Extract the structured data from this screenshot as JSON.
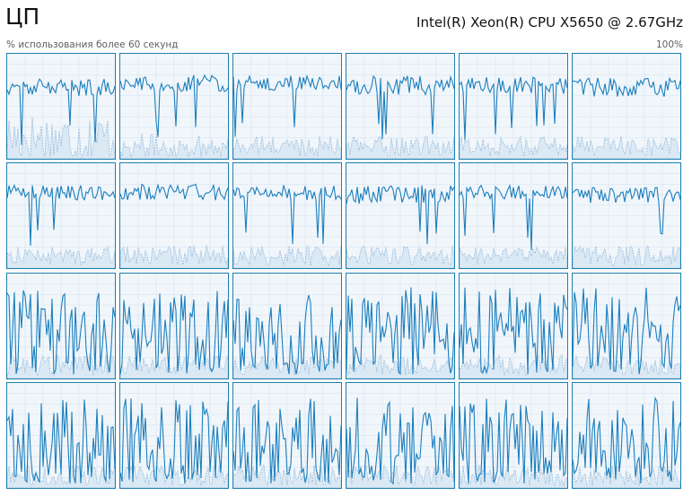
{
  "header": {
    "title": "ЦП",
    "cpu_name": "Intel(R) Xeon(R) CPU X5650 @ 2.67GHz",
    "subtitle": "% использования более 60 секунд",
    "max_percent": "100%"
  },
  "colors": {
    "border": "#1b7fb0",
    "line": "#1c7fbd",
    "fill": "#dbe9f5",
    "background": "#f1f6fb",
    "grid": "#d7e4f0"
  },
  "graphs": {
    "count": 24,
    "rows": 4,
    "columns": 6,
    "levels": [
      [
        0.68,
        0.08,
        0.2,
        0.5
      ],
      [
        0.72,
        0.08,
        0.12,
        0.25
      ],
      [
        0.72,
        0.07,
        0.12,
        0.2
      ],
      [
        0.7,
        0.09,
        0.12,
        0.2
      ],
      [
        0.7,
        0.08,
        0.12,
        0.2
      ],
      [
        0.68,
        0.09,
        0.12,
        0.2
      ],
      [
        0.72,
        0.07,
        0.12,
        0.18
      ],
      [
        0.72,
        0.08,
        0.12,
        0.2
      ],
      [
        0.72,
        0.07,
        0.12,
        0.2
      ],
      [
        0.7,
        0.09,
        0.12,
        0.18
      ],
      [
        0.72,
        0.07,
        0.12,
        0.18
      ],
      [
        0.7,
        0.08,
        0.12,
        0.2
      ],
      [
        0.55,
        0.32,
        0.13,
        0.22
      ],
      [
        0.55,
        0.32,
        0.13,
        0.18
      ],
      [
        0.55,
        0.32,
        0.13,
        0.2
      ],
      [
        0.55,
        0.32,
        0.13,
        0.2
      ],
      [
        0.55,
        0.32,
        0.13,
        0.2
      ],
      [
        0.55,
        0.32,
        0.13,
        0.2
      ],
      [
        0.5,
        0.36,
        0.12,
        0.2
      ],
      [
        0.5,
        0.36,
        0.12,
        0.2
      ],
      [
        0.5,
        0.36,
        0.12,
        0.2
      ],
      [
        0.5,
        0.36,
        0.12,
        0.2
      ],
      [
        0.5,
        0.36,
        0.12,
        0.2
      ],
      [
        0.5,
        0.36,
        0.12,
        0.2
      ]
    ]
  }
}
